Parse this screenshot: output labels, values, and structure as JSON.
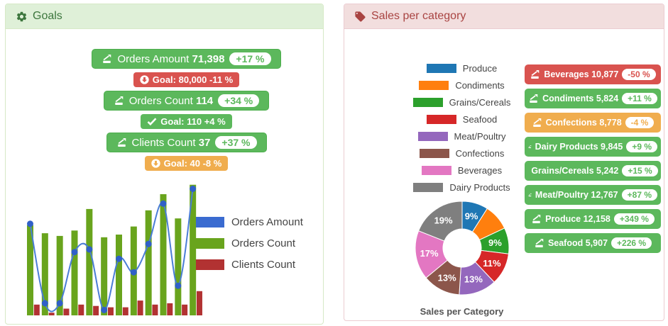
{
  "palette": {
    "green": "#5cb85c",
    "red": "#d9534f",
    "orange": "#f0ad4e",
    "header_green": "#3c763d",
    "header_red": "#a94442"
  },
  "goals_panel": {
    "title": "Goals",
    "items": [
      {
        "type": "button",
        "color": "green",
        "icon": "chart-arrow-icon",
        "label": "Orders Amount",
        "value": "71,398",
        "delta": "+17 %"
      },
      {
        "type": "badge",
        "color": "red",
        "icon": "arrow-circle-down-icon",
        "label": "Goal:",
        "value": "80,000",
        "delta": "-11 %"
      },
      {
        "type": "button",
        "color": "green",
        "icon": "chart-arrow-icon",
        "label": "Orders Count",
        "value": "114",
        "delta": "+34 %"
      },
      {
        "type": "badge",
        "color": "green",
        "icon": "check-icon",
        "label": "Goal:",
        "value": "110",
        "delta": "+4 %"
      },
      {
        "type": "button",
        "color": "green",
        "icon": "chart-arrow-icon",
        "label": "Clients Count",
        "value": "37",
        "delta": "+37 %"
      },
      {
        "type": "badge",
        "color": "orange",
        "icon": "arrow-circle-down-icon",
        "label": "Goal:",
        "value": "40",
        "delta": "-8 %"
      }
    ],
    "legend": [
      {
        "label": "Orders Amount",
        "color": "#3a6bd0"
      },
      {
        "label": "Orders Count",
        "color": "#69a41d"
      },
      {
        "label": "Clients Count",
        "color": "#b23232"
      }
    ]
  },
  "sales_panel": {
    "title": "Sales per category",
    "caption": "Sales per Category",
    "legend": [
      {
        "label": "Produce",
        "color": "#1f77b4"
      },
      {
        "label": "Condiments",
        "color": "#ff7f0e"
      },
      {
        "label": "Grains/Cereals",
        "color": "#2ca02c"
      },
      {
        "label": "Seafood",
        "color": "#d62728"
      },
      {
        "label": "Meat/Poultry",
        "color": "#9467bd"
      },
      {
        "label": "Confections",
        "color": "#8c564b"
      },
      {
        "label": "Beverages",
        "color": "#e377c2"
      },
      {
        "label": "Dairy Products",
        "color": "#7f7f7f"
      }
    ],
    "buttons": [
      {
        "label": "Beverages",
        "value": "10,877",
        "delta": "-50 %",
        "color": "red"
      },
      {
        "label": "Condiments",
        "value": "5,824",
        "delta": "+11 %",
        "color": "green"
      },
      {
        "label": "Confections",
        "value": "8,778",
        "delta": "-4 %",
        "color": "orange"
      },
      {
        "label": "Dairy Products",
        "value": "9,845",
        "delta": "+9 %",
        "color": "green"
      },
      {
        "label": "Grains/Cereals",
        "value": "5,242",
        "delta": "+15 %",
        "color": "green"
      },
      {
        "label": "Meat/Poultry",
        "value": "12,767",
        "delta": "+87 %",
        "color": "green"
      },
      {
        "label": "Produce",
        "value": "12,158",
        "delta": "+349 %",
        "color": "green"
      },
      {
        "label": "Seafood",
        "value": "5,907",
        "delta": "+226 %",
        "color": "green"
      }
    ]
  },
  "chart_data": [
    {
      "type": "bar",
      "subtype": "combo-bar-line",
      "title": "Goals combo chart",
      "n_points": 12,
      "axis_labels_visible": false,
      "grid": false,
      "values_normalized_0_100": true,
      "ylim": [
        0,
        100
      ],
      "legend_position": "right",
      "series": [
        {
          "name": "Orders Amount",
          "render": "line",
          "color_line": "#4a7dd6",
          "color_marker": "#3060c8",
          "values": [
            68,
            9,
            9,
            47,
            49,
            4,
            42,
            32,
            53,
            83,
            22,
            94
          ]
        },
        {
          "name": "Orders Count",
          "render": "bar",
          "color": "#69a41d",
          "values": [
            67,
            61,
            59,
            63,
            79,
            58,
            60,
            66,
            78,
            90,
            72,
            97
          ]
        },
        {
          "name": "Clients Count",
          "render": "bar",
          "color": "#b23232",
          "values": [
            8,
            2,
            5,
            8,
            7,
            6,
            6,
            11,
            8,
            9,
            8,
            18
          ]
        }
      ]
    },
    {
      "type": "pie",
      "donut": true,
      "title": "Sales per Category",
      "start_angle_deg": -90,
      "direction": "clockwise",
      "slices": [
        {
          "label": "Produce",
          "pct": 9,
          "data_label": "9%",
          "color": "#1f77b4"
        },
        {
          "label": "Condiments",
          "pct": 9,
          "data_label": "",
          "color": "#ff7f0e"
        },
        {
          "label": "Grains/Cereals",
          "pct": 9,
          "data_label": "9%",
          "color": "#2ca02c"
        },
        {
          "label": "Seafood",
          "pct": 11,
          "data_label": "11%",
          "color": "#d62728"
        },
        {
          "label": "Meat/Poultry",
          "pct": 13,
          "data_label": "13%",
          "color": "#9467bd"
        },
        {
          "label": "Confections",
          "pct": 13,
          "data_label": "13%",
          "color": "#8c564b"
        },
        {
          "label": "Beverages",
          "pct": 17,
          "data_label": "17%",
          "color": "#e377c2"
        },
        {
          "label": "Dairy Products",
          "pct": 19,
          "data_label": "19%",
          "color": "#7f7f7f"
        }
      ]
    }
  ]
}
